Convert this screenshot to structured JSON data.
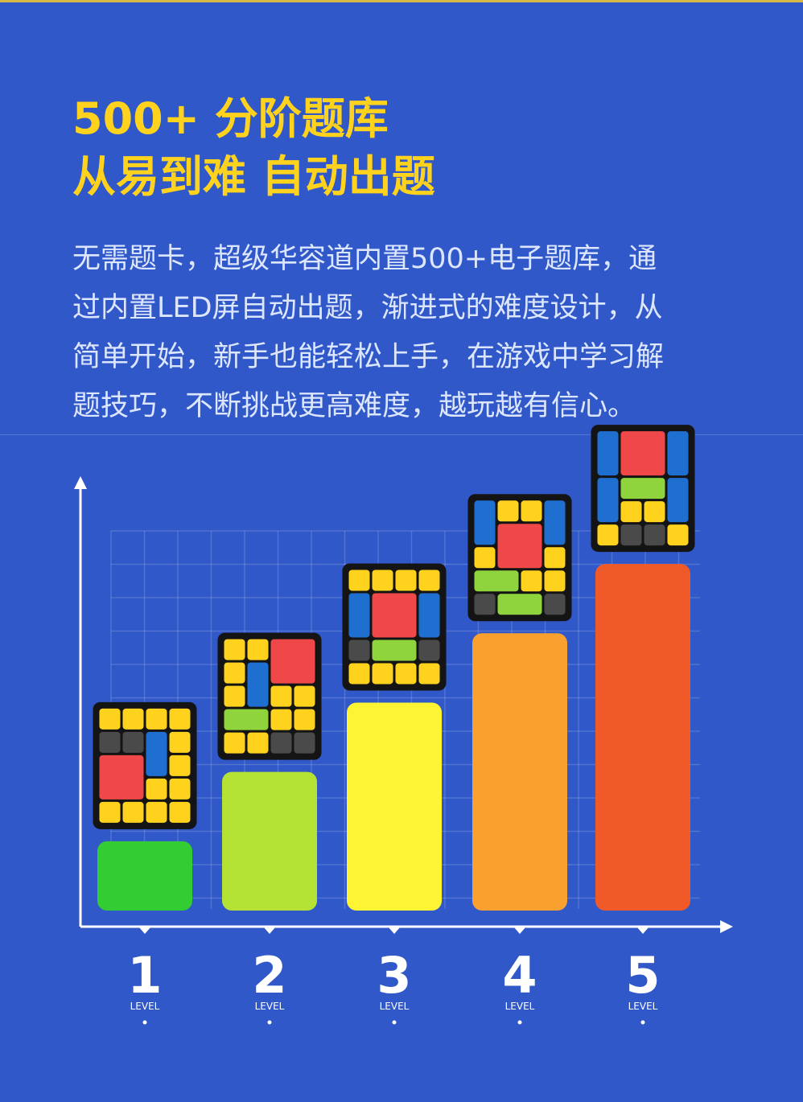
{
  "header": {
    "title_line1": "500+ 分阶题库",
    "title_line2": "从易到难  自动出题"
  },
  "description": {
    "lines": [
      "无需题卡，超级华容道内置500+电子题库，通",
      "过内置LED屏自动出题，渐进式的难度设计，从",
      "简单开始，新手也能轻松上手，在游戏中学习解",
      "题技巧，不断挑战更高难度，越玩越有信心。"
    ]
  },
  "colors": {
    "background": "#3058c8",
    "title": "#ffd21e",
    "block_yellow": "#ffd21e",
    "block_red": "#f04848",
    "block_blue": "#1f6fd0",
    "block_green": "#8fd43c",
    "block_gray": "#4a4a4a",
    "puzzle_frame": "#141414"
  },
  "chart_data": {
    "type": "bar",
    "categories": [
      "1",
      "2",
      "3",
      "4",
      "5"
    ],
    "category_sublabel": "LEVEL",
    "values": [
      1,
      2,
      3,
      4,
      5
    ],
    "bar_colors": [
      "#33cc33",
      "#b5e335",
      "#fdf433",
      "#f9a02e",
      "#ef5a28"
    ],
    "title": "",
    "xlabel": "",
    "ylabel": "",
    "ylim": [
      0,
      5.5
    ],
    "grid": true,
    "axis_arrows": true,
    "puzzles": [
      {
        "name": "level-1-puzzle",
        "blocks": [
          {
            "type": "yellow",
            "c": 0,
            "r": 0,
            "w": 1,
            "h": 1
          },
          {
            "type": "yellow",
            "c": 1,
            "r": 0,
            "w": 1,
            "h": 1
          },
          {
            "type": "yellow",
            "c": 2,
            "r": 0,
            "w": 1,
            "h": 1
          },
          {
            "type": "yellow",
            "c": 3,
            "r": 0,
            "w": 1,
            "h": 1
          },
          {
            "type": "gray",
            "c": 0,
            "r": 1,
            "w": 1,
            "h": 1
          },
          {
            "type": "gray",
            "c": 1,
            "r": 1,
            "w": 1,
            "h": 1
          },
          {
            "type": "blue",
            "c": 2,
            "r": 1,
            "w": 1,
            "h": 2
          },
          {
            "type": "yellow",
            "c": 3,
            "r": 1,
            "w": 1,
            "h": 1
          },
          {
            "type": "red",
            "c": 0,
            "r": 2,
            "w": 2,
            "h": 2
          },
          {
            "type": "yellow",
            "c": 3,
            "r": 2,
            "w": 1,
            "h": 1
          },
          {
            "type": "yellow",
            "c": 2,
            "r": 3,
            "w": 1,
            "h": 1
          },
          {
            "type": "yellow",
            "c": 3,
            "r": 3,
            "w": 1,
            "h": 1
          },
          {
            "type": "yellow",
            "c": 0,
            "r": 4,
            "w": 1,
            "h": 1
          },
          {
            "type": "yellow",
            "c": 1,
            "r": 4,
            "w": 1,
            "h": 1
          },
          {
            "type": "yellow",
            "c": 2,
            "r": 4,
            "w": 1,
            "h": 1
          },
          {
            "type": "yellow",
            "c": 3,
            "r": 4,
            "w": 1,
            "h": 1
          }
        ]
      },
      {
        "name": "level-2-puzzle",
        "blocks": [
          {
            "type": "yellow",
            "c": 0,
            "r": 0,
            "w": 1,
            "h": 1
          },
          {
            "type": "yellow",
            "c": 1,
            "r": 0,
            "w": 1,
            "h": 1
          },
          {
            "type": "red",
            "c": 2,
            "r": 0,
            "w": 2,
            "h": 2
          },
          {
            "type": "yellow",
            "c": 0,
            "r": 1,
            "w": 1,
            "h": 1
          },
          {
            "type": "blue",
            "c": 1,
            "r": 1,
            "w": 1,
            "h": 2
          },
          {
            "type": "yellow",
            "c": 0,
            "r": 2,
            "w": 1,
            "h": 1
          },
          {
            "type": "yellow",
            "c": 2,
            "r": 2,
            "w": 1,
            "h": 1
          },
          {
            "type": "yellow",
            "c": 3,
            "r": 2,
            "w": 1,
            "h": 1
          },
          {
            "type": "green",
            "c": 0,
            "r": 3,
            "w": 2,
            "h": 1
          },
          {
            "type": "yellow",
            "c": 2,
            "r": 3,
            "w": 1,
            "h": 1
          },
          {
            "type": "yellow",
            "c": 3,
            "r": 3,
            "w": 1,
            "h": 1
          },
          {
            "type": "yellow",
            "c": 0,
            "r": 4,
            "w": 1,
            "h": 1
          },
          {
            "type": "yellow",
            "c": 1,
            "r": 4,
            "w": 1,
            "h": 1
          },
          {
            "type": "gray",
            "c": 2,
            "r": 4,
            "w": 1,
            "h": 1
          },
          {
            "type": "gray",
            "c": 3,
            "r": 4,
            "w": 1,
            "h": 1
          }
        ]
      },
      {
        "name": "level-3-puzzle",
        "blocks": [
          {
            "type": "yellow",
            "c": 0,
            "r": 0,
            "w": 1,
            "h": 1
          },
          {
            "type": "yellow",
            "c": 1,
            "r": 0,
            "w": 1,
            "h": 1
          },
          {
            "type": "yellow",
            "c": 2,
            "r": 0,
            "w": 1,
            "h": 1
          },
          {
            "type": "yellow",
            "c": 3,
            "r": 0,
            "w": 1,
            "h": 1
          },
          {
            "type": "blue",
            "c": 0,
            "r": 1,
            "w": 1,
            "h": 2
          },
          {
            "type": "red",
            "c": 1,
            "r": 1,
            "w": 2,
            "h": 2
          },
          {
            "type": "blue",
            "c": 3,
            "r": 1,
            "w": 1,
            "h": 2
          },
          {
            "type": "gray",
            "c": 0,
            "r": 3,
            "w": 1,
            "h": 1
          },
          {
            "type": "green",
            "c": 1,
            "r": 3,
            "w": 2,
            "h": 1
          },
          {
            "type": "gray",
            "c": 3,
            "r": 3,
            "w": 1,
            "h": 1
          },
          {
            "type": "yellow",
            "c": 0,
            "r": 4,
            "w": 1,
            "h": 1
          },
          {
            "type": "yellow",
            "c": 1,
            "r": 4,
            "w": 1,
            "h": 1
          },
          {
            "type": "yellow",
            "c": 2,
            "r": 4,
            "w": 1,
            "h": 1
          },
          {
            "type": "yellow",
            "c": 3,
            "r": 4,
            "w": 1,
            "h": 1
          }
        ]
      },
      {
        "name": "level-4-puzzle",
        "blocks": [
          {
            "type": "blue",
            "c": 0,
            "r": 0,
            "w": 1,
            "h": 2
          },
          {
            "type": "yellow",
            "c": 1,
            "r": 0,
            "w": 1,
            "h": 1
          },
          {
            "type": "yellow",
            "c": 2,
            "r": 0,
            "w": 1,
            "h": 1
          },
          {
            "type": "blue",
            "c": 3,
            "r": 0,
            "w": 1,
            "h": 2
          },
          {
            "type": "red",
            "c": 1,
            "r": 1,
            "w": 2,
            "h": 2
          },
          {
            "type": "yellow",
            "c": 0,
            "r": 2,
            "w": 1,
            "h": 1
          },
          {
            "type": "yellow",
            "c": 3,
            "r": 2,
            "w": 1,
            "h": 1
          },
          {
            "type": "green",
            "c": 0,
            "r": 3,
            "w": 2,
            "h": 1
          },
          {
            "type": "yellow",
            "c": 2,
            "r": 3,
            "w": 1,
            "h": 1
          },
          {
            "type": "yellow",
            "c": 3,
            "r": 3,
            "w": 1,
            "h": 1
          },
          {
            "type": "gray",
            "c": 0,
            "r": 4,
            "w": 1,
            "h": 1
          },
          {
            "type": "green",
            "c": 1,
            "r": 4,
            "w": 2,
            "h": 1
          },
          {
            "type": "gray",
            "c": 3,
            "r": 4,
            "w": 1,
            "h": 1
          }
        ]
      },
      {
        "name": "level-5-puzzle",
        "blocks": [
          {
            "type": "blue",
            "c": 0,
            "r": 0,
            "w": 1,
            "h": 2
          },
          {
            "type": "red",
            "c": 1,
            "r": 0,
            "w": 2,
            "h": 2
          },
          {
            "type": "blue",
            "c": 3,
            "r": 0,
            "w": 1,
            "h": 2
          },
          {
            "type": "blue",
            "c": 0,
            "r": 2,
            "w": 1,
            "h": 2
          },
          {
            "type": "green",
            "c": 1,
            "r": 2,
            "w": 2,
            "h": 1
          },
          {
            "type": "blue",
            "c": 3,
            "r": 2,
            "w": 1,
            "h": 2
          },
          {
            "type": "yellow",
            "c": 1,
            "r": 3,
            "w": 1,
            "h": 1
          },
          {
            "type": "yellow",
            "c": 2,
            "r": 3,
            "w": 1,
            "h": 1
          },
          {
            "type": "yellow",
            "c": 0,
            "r": 4,
            "w": 1,
            "h": 1
          },
          {
            "type": "gray",
            "c": 1,
            "r": 4,
            "w": 1,
            "h": 1
          },
          {
            "type": "gray",
            "c": 2,
            "r": 4,
            "w": 1,
            "h": 1
          },
          {
            "type": "yellow",
            "c": 3,
            "r": 4,
            "w": 1,
            "h": 1
          }
        ]
      }
    ]
  }
}
